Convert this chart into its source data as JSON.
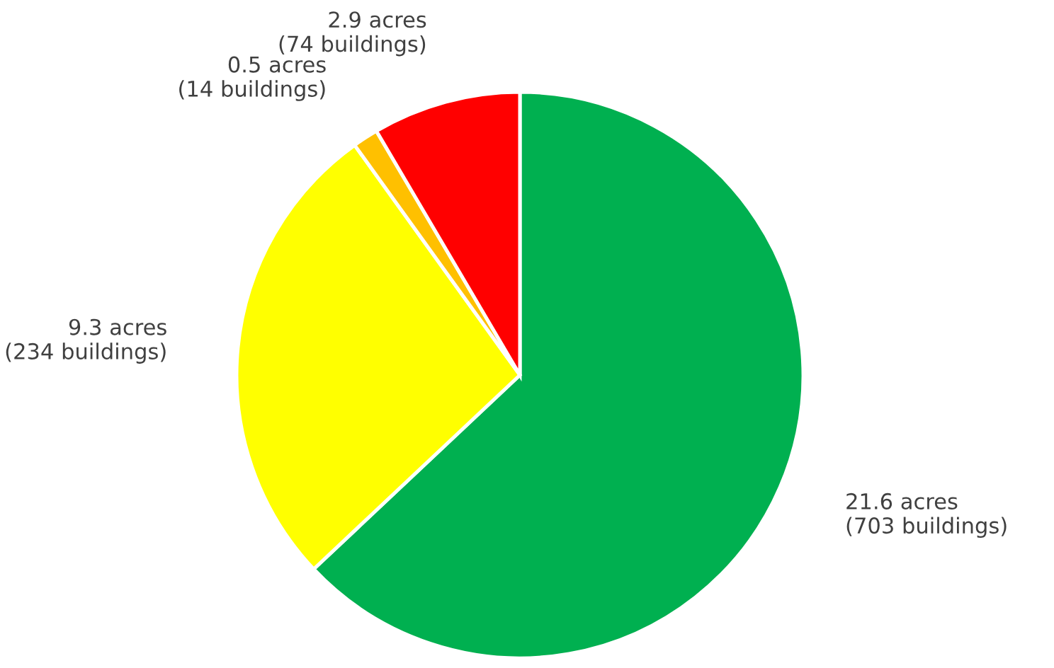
{
  "chart_data": {
    "type": "pie",
    "categories": [
      null,
      null,
      null,
      null
    ],
    "values": [
      21.6,
      9.3,
      0.5,
      2.9
    ],
    "colors": [
      "#00b050",
      "#ffff00",
      "#ffc000",
      "#ff0000"
    ],
    "value_labels": [
      "21.6 acres\n(703 buildings)",
      "9.3 acres\n(234 buildings)",
      "0.5 acres\n(14 buildings)",
      "2.9 acres\n(74 buildings)"
    ]
  }
}
